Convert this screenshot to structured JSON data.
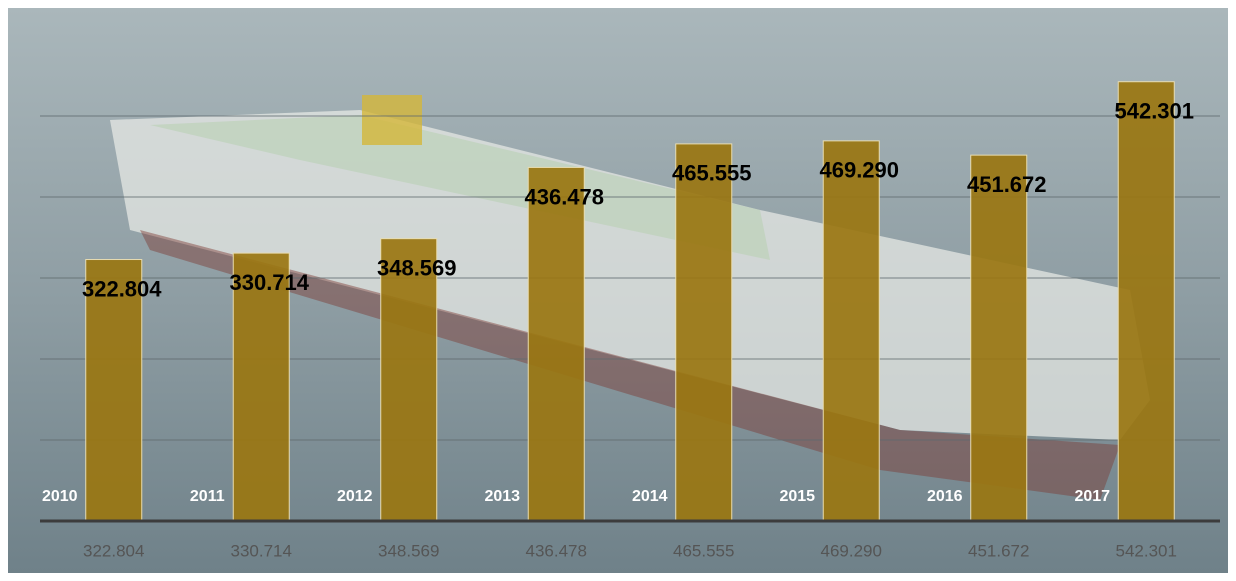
{
  "chart_data": {
    "type": "bar",
    "categories": [
      "2010",
      "2011",
      "2012",
      "2013",
      "2014",
      "2015",
      "2016",
      "2017"
    ],
    "values": [
      322.804,
      330.714,
      348.569,
      436.478,
      465.555,
      469.29,
      451.672,
      542.301
    ],
    "value_labels": [
      "322.804",
      "330.714",
      "348.569",
      "436.478",
      "465.555",
      "469.290",
      "451.672",
      "542.301"
    ],
    "color": "#9a7611",
    "ylim": [
      0,
      600
    ],
    "yticks": [
      100,
      200,
      300,
      400,
      500
    ],
    "grid": true
  }
}
